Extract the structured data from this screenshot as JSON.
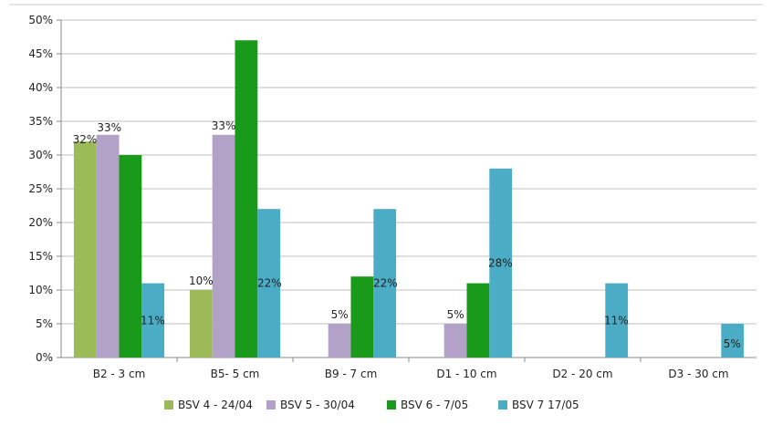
{
  "chart_data": {
    "type": "bar",
    "categories": [
      "B2 - 3 cm",
      "B5- 5 cm",
      "B9 - 7 cm",
      "D1 - 10 cm",
      "D2 - 20 cm",
      "D3 - 30 cm"
    ],
    "series": [
      {
        "name": "BSV 4 - 24/04",
        "color": "#9bbb59",
        "values": [
          32,
          10,
          0,
          0,
          0,
          0
        ],
        "labels": [
          "32%",
          "10%",
          "",
          "",
          "",
          ""
        ]
      },
      {
        "name": "BSV 5 - 30/04",
        "color": "#b3a2c7",
        "values": [
          33,
          33,
          5,
          5,
          0,
          0
        ],
        "labels": [
          "33%",
          "33%",
          "5%",
          "5%",
          "",
          ""
        ]
      },
      {
        "name": "BSV 6 - 7/05",
        "color": "#1a9a1a",
        "values": [
          30,
          47,
          12,
          11,
          0,
          0
        ],
        "labels": [
          "",
          "",
          "",
          "",
          "",
          ""
        ]
      },
      {
        "name": "BSV 7 17/05",
        "color": "#4bacc6",
        "values": [
          11,
          22,
          22,
          28,
          11,
          5
        ],
        "labels": [
          "11%",
          "22%",
          "22%",
          "28%",
          "11%",
          "5%"
        ]
      }
    ],
    "yticks": [
      "0%",
      "5%",
      "10%",
      "15%",
      "20%",
      "25%",
      "30%",
      "35%",
      "40%",
      "45%",
      "50%"
    ],
    "ylim": [
      0,
      50
    ],
    "grid": true,
    "legend_position": "bottom",
    "title": "",
    "xlabel": "",
    "ylabel": ""
  }
}
